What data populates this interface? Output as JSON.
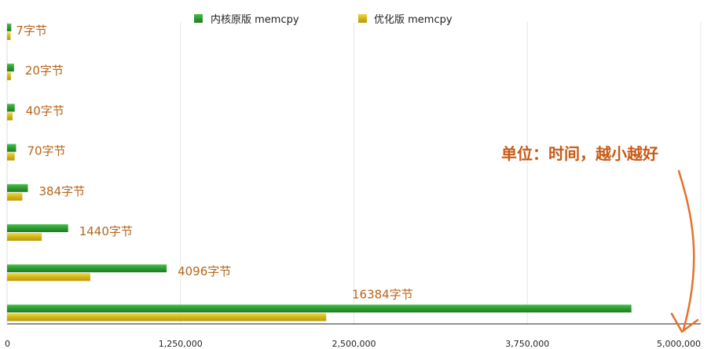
{
  "chart_data": {
    "type": "bar",
    "orientation": "horizontal",
    "categories": [
      "7字节",
      "20字节",
      "40字节",
      "70字节",
      "384字节",
      "1440字节",
      "4096字节",
      "16384字节"
    ],
    "series": [
      {
        "name": "内核原版 memcpy",
        "color": "#2e9b32",
        "values": [
          30000,
          50000,
          55000,
          65000,
          150000,
          440000,
          1150000,
          4500000
        ]
      },
      {
        "name": "优化版 memcpy",
        "color": "#d4b516",
        "values": [
          25000,
          28000,
          40000,
          55000,
          110000,
          250000,
          600000,
          2300000
        ]
      }
    ],
    "xlim": [
      0,
      5000000
    ],
    "xticks": [
      "0",
      "1,250,000",
      "2,500,000",
      "3,750,000",
      "5,000,000"
    ],
    "grid": true,
    "legend_position": "top"
  },
  "annotation": {
    "text": "单位：时间，越小越好",
    "color": "#c85a14",
    "arrow_icon": "curved-arrow-icon"
  }
}
